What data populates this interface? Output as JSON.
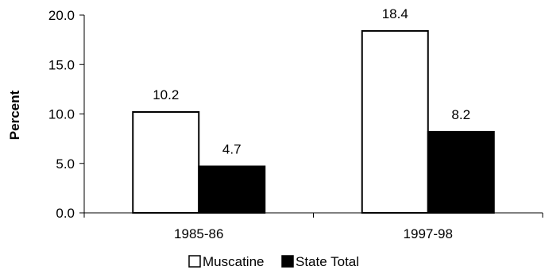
{
  "chart_data": {
    "type": "bar",
    "title": "",
    "xlabel": "",
    "ylabel": "Percent",
    "categories": [
      "1985-86",
      "1997-98"
    ],
    "series": [
      {
        "name": "Muscatine",
        "values": [
          10.2,
          18.4
        ],
        "color": "#ffffff",
        "stroke": "#000000"
      },
      {
        "name": "State Total",
        "values": [
          4.7,
          8.2
        ],
        "color": "#000000",
        "stroke": "#000000"
      }
    ],
    "data_labels": [
      [
        "10.2",
        "18.4"
      ],
      [
        "4.7",
        "8.2"
      ]
    ],
    "ylim": [
      0,
      20
    ],
    "yticks": [
      0,
      5,
      10,
      15,
      20
    ],
    "ytick_labels": [
      "0.0",
      "5.0",
      "10.0",
      "15.0",
      "20.0"
    ],
    "grid": false,
    "legend_position": "bottom"
  }
}
